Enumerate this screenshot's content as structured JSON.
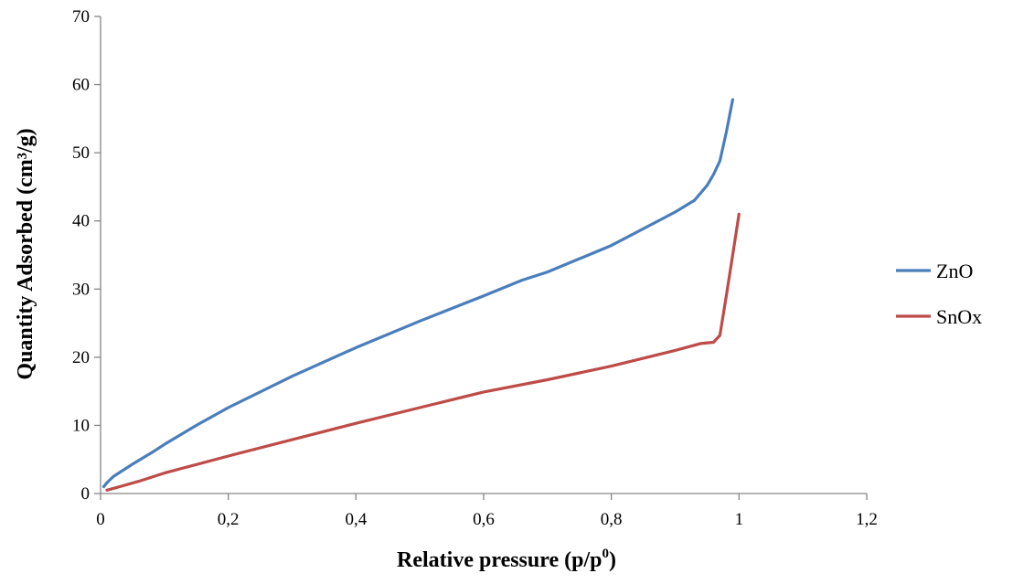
{
  "chart_data": {
    "type": "line",
    "title": "",
    "xlabel": "Relative pressure (p/p",
    "xlabel_sup": "0",
    "xlabel_close": ")",
    "ylabel": "Quantity Adsorbed (cm³/g)",
    "xlim": [
      0,
      1.2
    ],
    "ylim": [
      0,
      70
    ],
    "grid": false,
    "legend_position": "right",
    "x_ticks": [
      {
        "value": 0,
        "label": "0"
      },
      {
        "value": 0.2,
        "label": "0,2"
      },
      {
        "value": 0.4,
        "label": "0,4"
      },
      {
        "value": 0.6,
        "label": "0,6"
      },
      {
        "value": 0.8,
        "label": "0,8"
      },
      {
        "value": 1.0,
        "label": "1"
      },
      {
        "value": 1.2,
        "label": "1,2"
      }
    ],
    "y_ticks": [
      {
        "value": 0,
        "label": "0"
      },
      {
        "value": 10,
        "label": "10"
      },
      {
        "value": 20,
        "label": "20"
      },
      {
        "value": 30,
        "label": "30"
      },
      {
        "value": 40,
        "label": "40"
      },
      {
        "value": 50,
        "label": "50"
      },
      {
        "value": 60,
        "label": "60"
      },
      {
        "value": 70,
        "label": "70"
      }
    ],
    "series": [
      {
        "name": "ZnO",
        "color": "#4a7ebb",
        "x": [
          0.005,
          0.01,
          0.02,
          0.05,
          0.08,
          0.1,
          0.15,
          0.2,
          0.3,
          0.4,
          0.5,
          0.6,
          0.66,
          0.7,
          0.8,
          0.9,
          0.93,
          0.95,
          0.96,
          0.97,
          0.98,
          0.99
        ],
        "y": [
          1.0,
          1.6,
          2.5,
          4.3,
          6.0,
          7.2,
          10.0,
          12.6,
          17.2,
          21.4,
          25.3,
          29.0,
          31.3,
          32.5,
          36.4,
          41.3,
          43.0,
          45.2,
          46.8,
          48.8,
          53.0,
          57.8
        ]
      },
      {
        "name": "SnOx",
        "color": "#be4b48",
        "x": [
          0.01,
          0.03,
          0.06,
          0.1,
          0.2,
          0.3,
          0.4,
          0.5,
          0.6,
          0.7,
          0.8,
          0.9,
          0.94,
          0.96,
          0.97,
          0.98,
          0.99,
          1.0
        ],
        "y": [
          0.5,
          1.0,
          1.8,
          3.0,
          5.5,
          7.9,
          10.3,
          12.6,
          14.9,
          16.7,
          18.7,
          21.0,
          22.0,
          22.2,
          23.2,
          29.0,
          35.0,
          41.0
        ]
      }
    ]
  }
}
